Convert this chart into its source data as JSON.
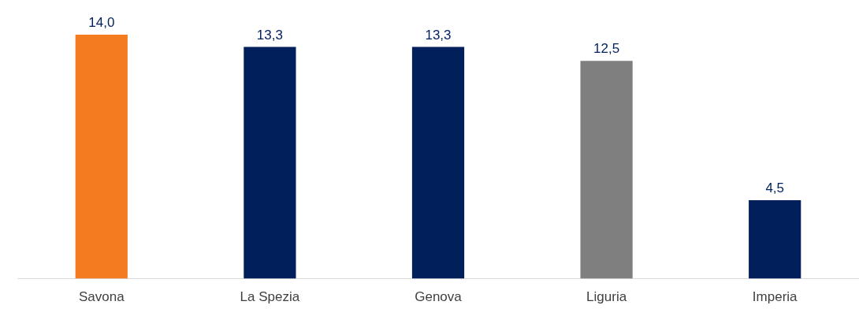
{
  "chart_data": {
    "type": "bar",
    "categories": [
      "Savona",
      "La Spezia",
      "Genova",
      "Liguria",
      "Imperia"
    ],
    "values": [
      14.0,
      13.3,
      13.3,
      12.5,
      4.5
    ],
    "colors": [
      "#f47b20",
      "#001f5b",
      "#001f5b",
      "#7f7f7f",
      "#001f5b"
    ],
    "value_labels": [
      "14,0",
      "13,3",
      "13,3",
      "12,5",
      "4,5"
    ],
    "grid": false,
    "legend": false
  }
}
